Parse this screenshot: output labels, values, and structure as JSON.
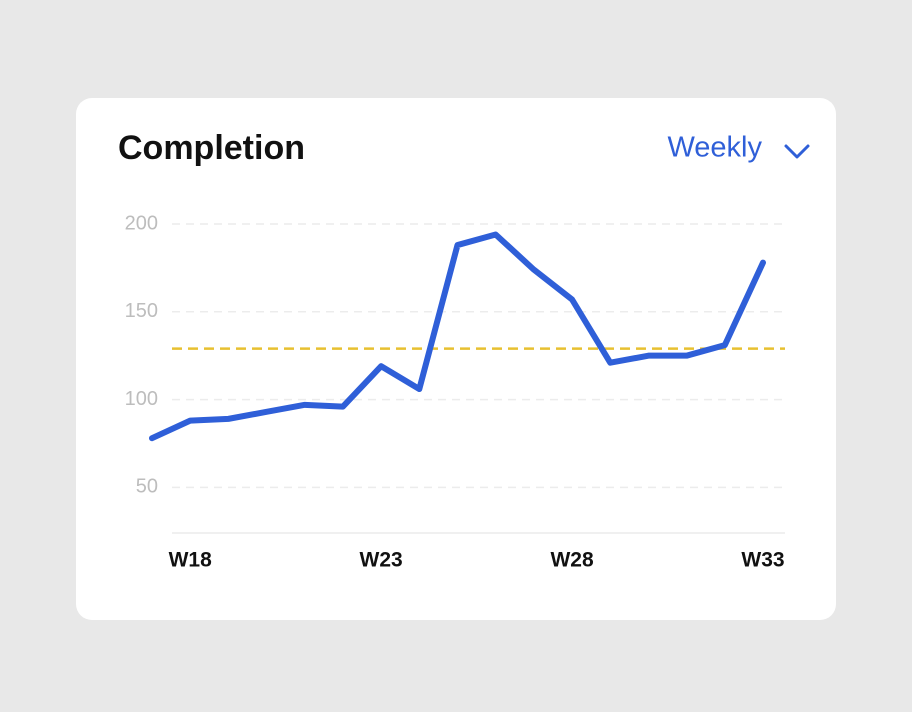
{
  "control": {
    "label": "Weekly"
  },
  "chart_data": {
    "type": "line",
    "title": "Completion",
    "categories": [
      null,
      "W18",
      null,
      null,
      null,
      null,
      "W23",
      null,
      null,
      null,
      null,
      "W28",
      null,
      null,
      null,
      null,
      "W33"
    ],
    "series": [
      {
        "name": "Completion",
        "color": "#2f5fd8",
        "values": [
          78,
          88,
          89,
          93,
          97,
          96,
          119,
          106,
          188,
          194,
          174,
          157,
          121,
          125,
          125,
          131,
          178
        ]
      }
    ],
    "reference": {
      "value": 129,
      "color": "#e8c030"
    },
    "ylim": [
      24,
      200
    ],
    "yticks": [
      50,
      100,
      150,
      200
    ],
    "grid": true
  }
}
